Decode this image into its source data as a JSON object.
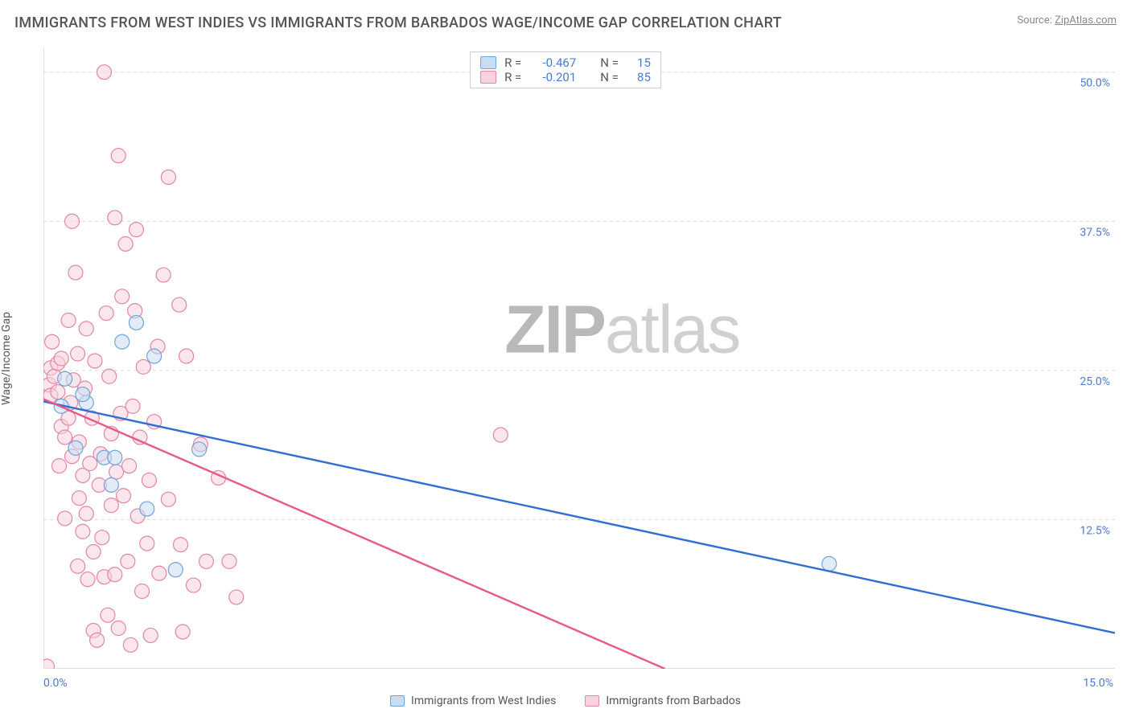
{
  "title": "IMMIGRANTS FROM WEST INDIES VS IMMIGRANTS FROM BARBADOS WAGE/INCOME GAP CORRELATION CHART",
  "source_label": "Source:",
  "source_site": "ZipAtlas.com",
  "watermark": {
    "part1": "ZIP",
    "part2": "atlas"
  },
  "chart": {
    "type": "scatter-with-trend",
    "ylabel": "Wage/Income Gap",
    "xlim": [
      0,
      15
    ],
    "ylim": [
      0,
      52
    ],
    "x_tick_left": "0.0%",
    "x_tick_right": "15.0%",
    "y_gridlines": [
      {
        "v": 12.5,
        "label": "12.5%"
      },
      {
        "v": 25.0,
        "label": "25.0%"
      },
      {
        "v": 37.5,
        "label": "37.5%"
      },
      {
        "v": 50.0,
        "label": "50.0%"
      }
    ],
    "grid_color": "#d9d9d9",
    "axis_color": "#bfbfbf",
    "background_color": "#ffffff",
    "label_color": "#4a7bd0",
    "marker_radius": 9,
    "marker_stroke_width": 1.2,
    "trend_line_width": 2.4,
    "series": [
      {
        "id": "west_indies",
        "label": "Immigrants from West Indies",
        "fill": "#c9ddf2",
        "stroke": "#6fa4d8",
        "line_color": "#2f6fd0",
        "R": "-0.467",
        "N": "15",
        "trend": {
          "x0": 0,
          "y0": 22.4,
          "x1": 15,
          "y1": 3.0
        },
        "points": [
          {
            "x": 0.25,
            "y": 22.0
          },
          {
            "x": 0.3,
            "y": 24.3
          },
          {
            "x": 0.45,
            "y": 18.5
          },
          {
            "x": 0.6,
            "y": 22.3
          },
          {
            "x": 0.85,
            "y": 17.7
          },
          {
            "x": 1.0,
            "y": 17.7
          },
          {
            "x": 1.1,
            "y": 27.4
          },
          {
            "x": 1.3,
            "y": 29.0
          },
          {
            "x": 1.55,
            "y": 26.2
          },
          {
            "x": 1.45,
            "y": 13.4
          },
          {
            "x": 1.85,
            "y": 8.3
          },
          {
            "x": 2.18,
            "y": 18.4
          },
          {
            "x": 0.95,
            "y": 15.4
          },
          {
            "x": 0.55,
            "y": 23.0
          },
          {
            "x": 11.0,
            "y": 8.8
          }
        ]
      },
      {
        "id": "barbados",
        "label": "Immigrants from Barbados",
        "fill": "#f8d2de",
        "stroke": "#e386a2",
        "line_color": "#e75a87",
        "R": "-0.201",
        "N": "85",
        "trend": {
          "x0": 0,
          "y0": 22.6,
          "x1": 8.7,
          "y1": 0.0
        },
        "points": [
          {
            "x": 0.05,
            "y": 0.2
          },
          {
            "x": 0.08,
            "y": 23.8
          },
          {
            "x": 0.1,
            "y": 22.9
          },
          {
            "x": 0.1,
            "y": 25.2
          },
          {
            "x": 0.15,
            "y": 24.5
          },
          {
            "x": 0.2,
            "y": 25.6
          },
          {
            "x": 0.2,
            "y": 23.2
          },
          {
            "x": 0.25,
            "y": 20.3
          },
          {
            "x": 0.25,
            "y": 26.0
          },
          {
            "x": 0.3,
            "y": 19.4
          },
          {
            "x": 0.35,
            "y": 21.0
          },
          {
            "x": 0.38,
            "y": 22.3
          },
          {
            "x": 0.4,
            "y": 17.8
          },
          {
            "x": 0.4,
            "y": 37.5
          },
          {
            "x": 0.42,
            "y": 24.2
          },
          {
            "x": 0.45,
            "y": 33.2
          },
          {
            "x": 0.48,
            "y": 26.4
          },
          {
            "x": 0.5,
            "y": 19.0
          },
          {
            "x": 0.5,
            "y": 14.3
          },
          {
            "x": 0.55,
            "y": 11.5
          },
          {
            "x": 0.55,
            "y": 16.2
          },
          {
            "x": 0.58,
            "y": 23.5
          },
          {
            "x": 0.6,
            "y": 13.0
          },
          {
            "x": 0.6,
            "y": 28.5
          },
          {
            "x": 0.62,
            "y": 7.5
          },
          {
            "x": 0.65,
            "y": 17.2
          },
          {
            "x": 0.68,
            "y": 21.0
          },
          {
            "x": 0.7,
            "y": 9.8
          },
          {
            "x": 0.7,
            "y": 3.2
          },
          {
            "x": 0.72,
            "y": 25.8
          },
          {
            "x": 0.75,
            "y": 2.4
          },
          {
            "x": 0.78,
            "y": 15.4
          },
          {
            "x": 0.8,
            "y": 18.0
          },
          {
            "x": 0.82,
            "y": 11.0
          },
          {
            "x": 0.85,
            "y": 7.7
          },
          {
            "x": 0.85,
            "y": 50.0
          },
          {
            "x": 0.88,
            "y": 29.8
          },
          {
            "x": 0.9,
            "y": 4.5
          },
          {
            "x": 0.92,
            "y": 24.5
          },
          {
            "x": 0.95,
            "y": 13.7
          },
          {
            "x": 1.0,
            "y": 37.8
          },
          {
            "x": 1.0,
            "y": 7.9
          },
          {
            "x": 1.02,
            "y": 16.5
          },
          {
            "x": 1.05,
            "y": 3.4
          },
          {
            "x": 1.05,
            "y": 43.0
          },
          {
            "x": 1.08,
            "y": 21.4
          },
          {
            "x": 1.1,
            "y": 31.2
          },
          {
            "x": 1.12,
            "y": 14.5
          },
          {
            "x": 1.15,
            "y": 35.6
          },
          {
            "x": 1.18,
            "y": 9.0
          },
          {
            "x": 1.2,
            "y": 17.0
          },
          {
            "x": 1.22,
            "y": 2.0
          },
          {
            "x": 1.25,
            "y": 22.0
          },
          {
            "x": 1.28,
            "y": 30.0
          },
          {
            "x": 1.3,
            "y": 36.8
          },
          {
            "x": 1.32,
            "y": 12.8
          },
          {
            "x": 1.35,
            "y": 19.4
          },
          {
            "x": 1.38,
            "y": 6.5
          },
          {
            "x": 1.4,
            "y": 25.3
          },
          {
            "x": 1.45,
            "y": 10.5
          },
          {
            "x": 1.48,
            "y": 15.8
          },
          {
            "x": 1.5,
            "y": 2.8
          },
          {
            "x": 1.55,
            "y": 20.7
          },
          {
            "x": 1.6,
            "y": 27.0
          },
          {
            "x": 1.62,
            "y": 8.0
          },
          {
            "x": 1.68,
            "y": 33.0
          },
          {
            "x": 1.75,
            "y": 14.2
          },
          {
            "x": 1.75,
            "y": 41.2
          },
          {
            "x": 1.9,
            "y": 30.5
          },
          {
            "x": 1.92,
            "y": 10.4
          },
          {
            "x": 2.0,
            "y": 26.2
          },
          {
            "x": 2.1,
            "y": 7.0
          },
          {
            "x": 2.2,
            "y": 18.8
          },
          {
            "x": 2.28,
            "y": 9.0
          },
          {
            "x": 2.45,
            "y": 16.0
          },
          {
            "x": 2.6,
            "y": 9.0
          },
          {
            "x": 2.7,
            "y": 6.0
          },
          {
            "x": 0.35,
            "y": 29.2
          },
          {
            "x": 0.12,
            "y": 27.4
          },
          {
            "x": 0.22,
            "y": 17.0
          },
          {
            "x": 0.3,
            "y": 12.6
          },
          {
            "x": 0.95,
            "y": 19.7
          },
          {
            "x": 0.48,
            "y": 8.6
          },
          {
            "x": 6.4,
            "y": 19.6
          },
          {
            "x": 1.95,
            "y": 3.1
          }
        ]
      }
    ],
    "legend_bottom": [
      {
        "label": "Immigrants from West Indies",
        "fill": "#c9ddf2",
        "stroke": "#6fa4d8"
      },
      {
        "label": "Immigrants from Barbados",
        "fill": "#f8d2de",
        "stroke": "#e386a2"
      }
    ]
  }
}
